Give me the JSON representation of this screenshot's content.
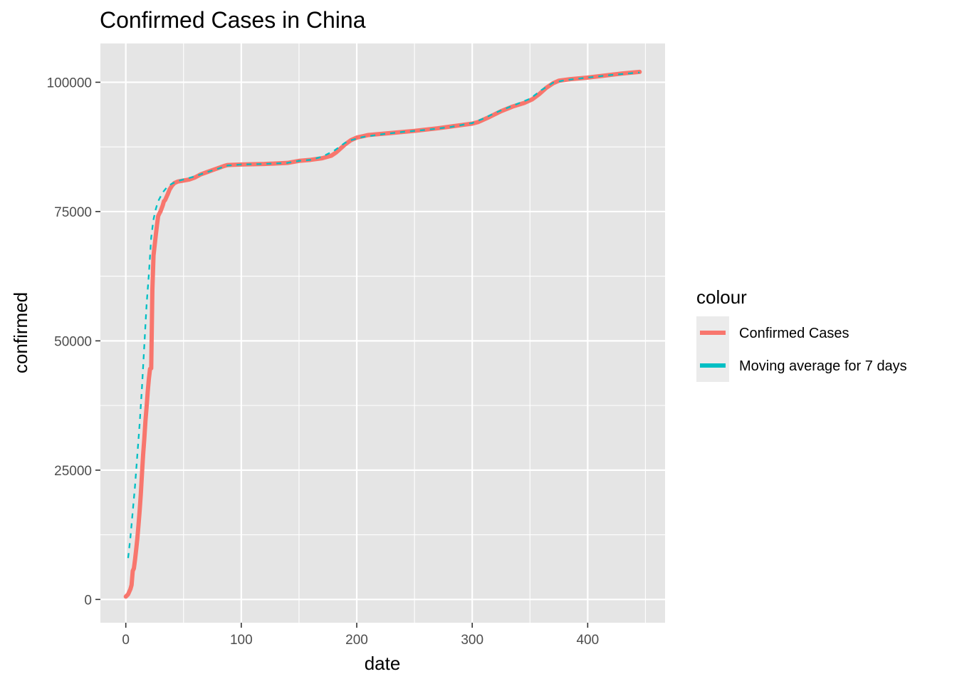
{
  "chart_data": {
    "type": "line",
    "title": "Confirmed Cases in China",
    "xlabel": "date",
    "ylabel": "confirmed",
    "xlim": [
      -22,
      467
    ],
    "ylim": [
      -4500,
      107500
    ],
    "x_ticks": [
      0,
      100,
      200,
      300,
      400
    ],
    "y_ticks": [
      0,
      25000,
      50000,
      75000,
      100000
    ],
    "x_tick_labels": [
      "0",
      "100",
      "200",
      "300",
      "400"
    ],
    "y_tick_labels": [
      "0",
      "25000",
      "50000",
      "75000",
      "100000"
    ],
    "grid": true,
    "panel_background": "#e5e5e5",
    "grid_color": "#ffffff",
    "legend": {
      "title": "colour",
      "position": "right"
    },
    "series": [
      {
        "name": "Confirmed Cases",
        "color": "#f8766d",
        "line_style": "solid",
        "points": [
          [
            0,
            548
          ],
          [
            2,
            1000
          ],
          [
            4,
            2000
          ],
          [
            5,
            2800
          ],
          [
            6,
            5500
          ],
          [
            7,
            6000
          ],
          [
            8,
            7700
          ],
          [
            9,
            9700
          ],
          [
            10,
            11800
          ],
          [
            11,
            14400
          ],
          [
            12,
            17200
          ],
          [
            13,
            20400
          ],
          [
            14,
            24300
          ],
          [
            15,
            28000
          ],
          [
            16,
            31000
          ],
          [
            17,
            34500
          ],
          [
            18,
            37200
          ],
          [
            19,
            40200
          ],
          [
            20,
            42700
          ],
          [
            21,
            44600
          ],
          [
            22,
            44700
          ],
          [
            23,
            59800
          ],
          [
            24,
            66500
          ],
          [
            25,
            68500
          ],
          [
            26,
            70500
          ],
          [
            27,
            72400
          ],
          [
            28,
            74100
          ],
          [
            29,
            74600
          ],
          [
            30,
            75000
          ],
          [
            31,
            75600
          ],
          [
            32,
            76200
          ],
          [
            33,
            77000
          ],
          [
            34,
            77200
          ],
          [
            36,
            78200
          ],
          [
            38,
            79300
          ],
          [
            40,
            80000
          ],
          [
            42,
            80500
          ],
          [
            45,
            80800
          ],
          [
            50,
            81000
          ],
          [
            55,
            81200
          ],
          [
            60,
            81600
          ],
          [
            65,
            82200
          ],
          [
            70,
            82600
          ],
          [
            75,
            83000
          ],
          [
            80,
            83400
          ],
          [
            85,
            83800
          ],
          [
            88,
            84000
          ],
          [
            100,
            84100
          ],
          [
            120,
            84200
          ],
          [
            140,
            84400
          ],
          [
            150,
            84800
          ],
          [
            160,
            85000
          ],
          [
            170,
            85300
          ],
          [
            178,
            85800
          ],
          [
            182,
            86400
          ],
          [
            186,
            87200
          ],
          [
            190,
            88000
          ],
          [
            195,
            88800
          ],
          [
            200,
            89300
          ],
          [
            210,
            89800
          ],
          [
            230,
            90200
          ],
          [
            250,
            90600
          ],
          [
            270,
            91100
          ],
          [
            290,
            91700
          ],
          [
            300,
            92000
          ],
          [
            305,
            92300
          ],
          [
            315,
            93300
          ],
          [
            325,
            94400
          ],
          [
            335,
            95300
          ],
          [
            345,
            96000
          ],
          [
            352,
            96700
          ],
          [
            358,
            97700
          ],
          [
            364,
            98900
          ],
          [
            370,
            99800
          ],
          [
            375,
            100300
          ],
          [
            385,
            100600
          ],
          [
            400,
            100900
          ],
          [
            415,
            101300
          ],
          [
            430,
            101700
          ],
          [
            445,
            102000
          ]
        ]
      },
      {
        "name": "Moving average for 7 days",
        "color": "#00bfc4",
        "line_style": "dashed",
        "points": [
          [
            2,
            8000
          ],
          [
            4,
            12000
          ],
          [
            6,
            17000
          ],
          [
            8,
            22000
          ],
          [
            10,
            28000
          ],
          [
            12,
            34000
          ],
          [
            14,
            41000
          ],
          [
            16,
            49000
          ],
          [
            18,
            57000
          ],
          [
            20,
            63000
          ],
          [
            22,
            70000
          ],
          [
            24,
            73500
          ],
          [
            26,
            75500
          ],
          [
            28,
            77000
          ],
          [
            32,
            78700
          ],
          [
            36,
            79800
          ],
          [
            40,
            80400
          ],
          [
            45,
            80900
          ],
          [
            50,
            81200
          ],
          [
            60,
            81800
          ],
          [
            70,
            82600
          ],
          [
            80,
            83300
          ],
          [
            88,
            83900
          ],
          [
            100,
            84100
          ],
          [
            120,
            84200
          ],
          [
            140,
            84400
          ],
          [
            150,
            84800
          ],
          [
            160,
            85000
          ],
          [
            170,
            85600
          ],
          [
            180,
            86700
          ],
          [
            190,
            88300
          ],
          [
            195,
            88800
          ],
          [
            205,
            89400
          ],
          [
            220,
            89900
          ],
          [
            240,
            90400
          ],
          [
            260,
            90800
          ],
          [
            280,
            91300
          ],
          [
            300,
            92100
          ],
          [
            310,
            93000
          ],
          [
            320,
            94100
          ],
          [
            330,
            95000
          ],
          [
            340,
            95900
          ],
          [
            350,
            96800
          ],
          [
            360,
            98500
          ],
          [
            370,
            99900
          ],
          [
            380,
            100400
          ],
          [
            400,
            100900
          ],
          [
            420,
            101400
          ],
          [
            445,
            101900
          ]
        ]
      }
    ]
  }
}
